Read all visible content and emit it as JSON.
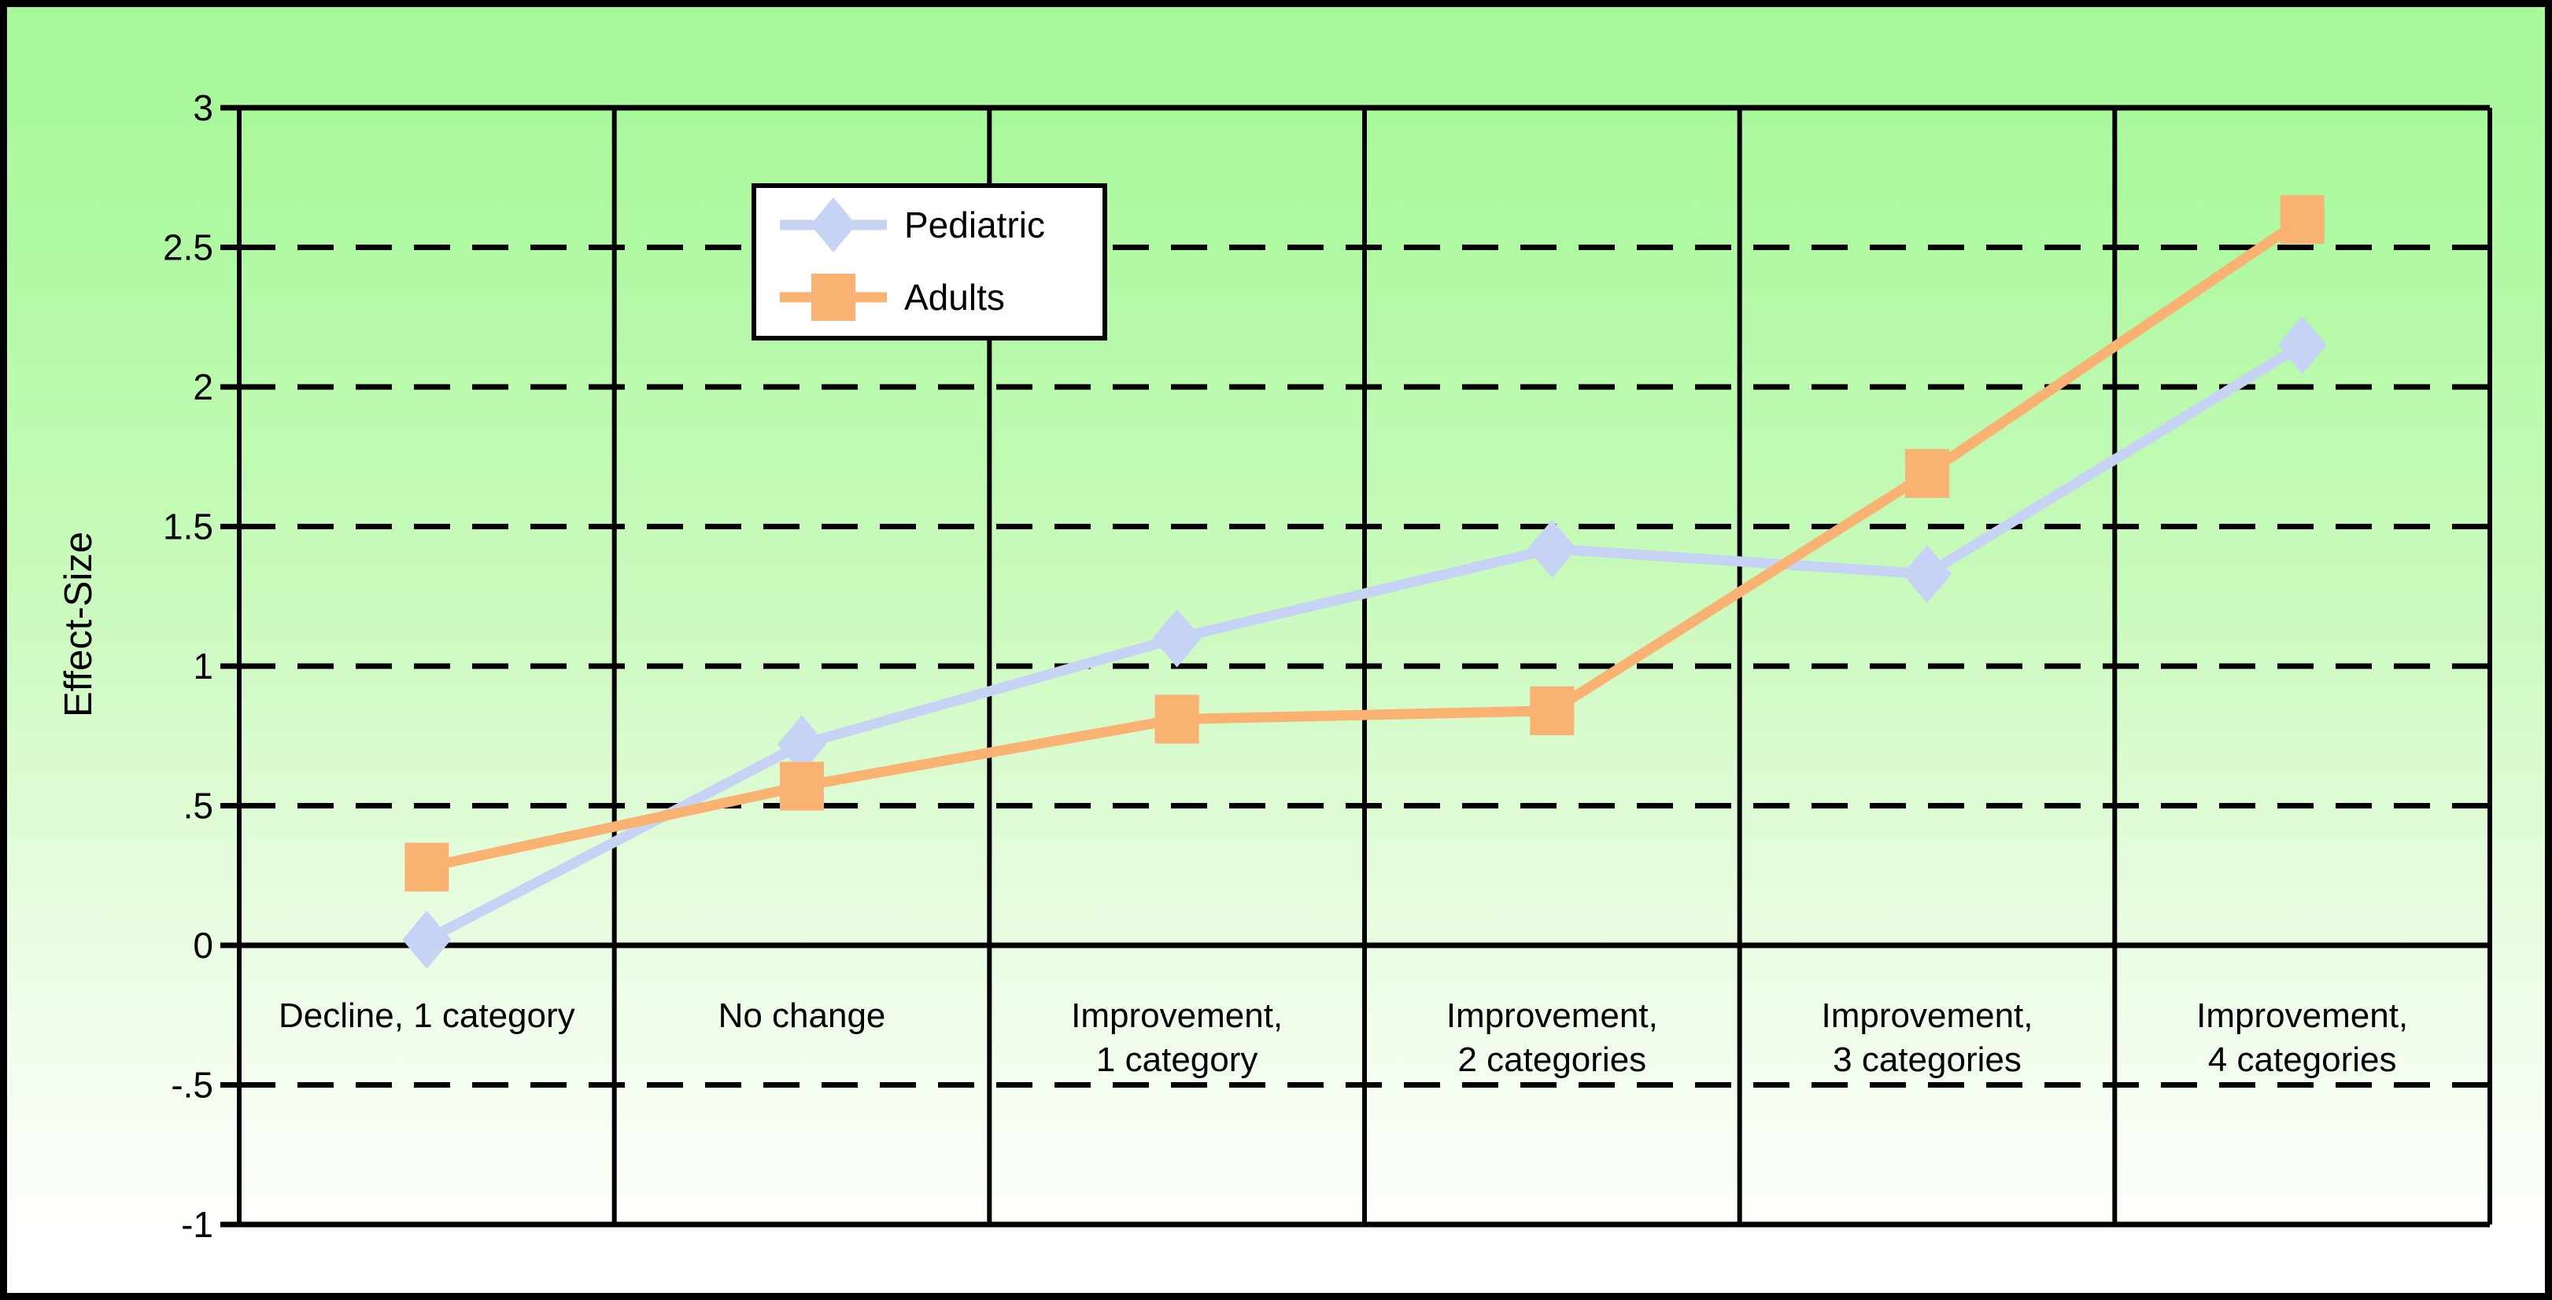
{
  "chart_data": {
    "type": "line",
    "title": "",
    "ylabel": "Effect-Size",
    "xlabel": "",
    "ylim": [
      -1,
      3
    ],
    "grid": "horizontal-dashed, vertical-solid column dividers",
    "legend_position": "top-left-inside",
    "categories": [
      "Decline, 1 category",
      "No change",
      "Improvement, 1 category",
      "Improvement, 2 categories",
      "Improvement, 3 categories",
      "Improvement, 4 categories"
    ],
    "category_display_lines": [
      [
        "Decline, 1 category"
      ],
      [
        "No change"
      ],
      [
        "Improvement,",
        "1 category"
      ],
      [
        "Improvement,",
        "2 categories"
      ],
      [
        "Improvement,",
        "3 categories"
      ],
      [
        "Improvement,",
        "4 categories"
      ]
    ],
    "series": [
      {
        "name": "Pediatric",
        "marker": "diamond",
        "color": "#c7d3f4",
        "values": [
          0.02,
          0.72,
          1.1,
          1.42,
          1.33,
          2.15
        ]
      },
      {
        "name": "Adults",
        "marker": "square",
        "color": "#f9b271",
        "values": [
          0.28,
          0.57,
          0.81,
          0.84,
          1.69,
          2.6
        ]
      }
    ],
    "y_axis": {
      "tick_labels": [
        "3",
        "2.5",
        "2",
        "1.5",
        "1",
        ".5",
        "0",
        "-.5",
        "-1"
      ],
      "tick_values": [
        3,
        2.5,
        2,
        1.5,
        1,
        0.5,
        0,
        -0.5,
        -1
      ],
      "dashed_gridlines_at": [
        2.5,
        2,
        1.5,
        1,
        0.5,
        -0.5
      ],
      "solid_lines_at": [
        3,
        0,
        -1
      ]
    }
  },
  "legend": {
    "items": [
      {
        "label": "Pediatric"
      },
      {
        "label": "Adults"
      }
    ]
  },
  "colors": {
    "line_color": "#000000",
    "legend_background": "#ffffff",
    "background_gradient_top": "#a6f898",
    "background_gradient_bottom": "#ffffff",
    "pediatric": "#c7d3f4",
    "adults": "#f9b271"
  }
}
